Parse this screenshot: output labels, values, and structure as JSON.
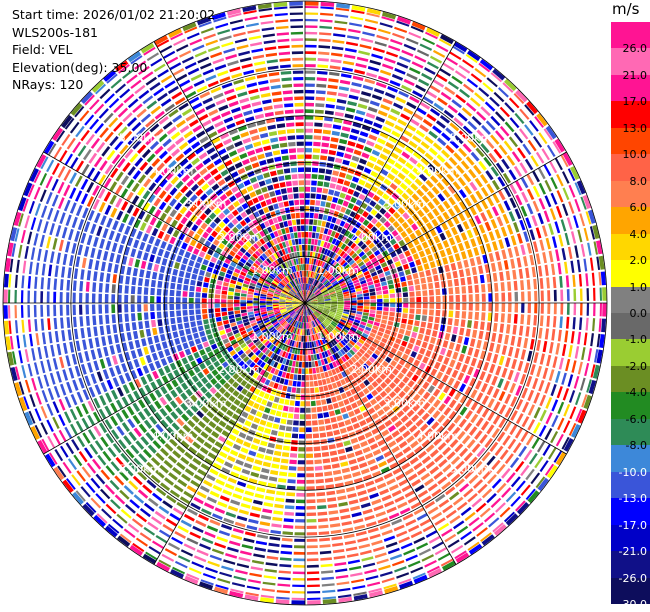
{
  "header": {
    "start_time": "Start time: 2026/01/02 21:20:02",
    "instrument": "WLS200s-181",
    "field": "Field: VEL",
    "elevation": "Elevation(deg): 35.00",
    "nrays": "NRays: 120"
  },
  "colorbar": {
    "unit": "m/s",
    "ticks": [
      "-30.0",
      "-26.0",
      "-21.0",
      "-17.0",
      "-13.0",
      "-10.0",
      "-8.0",
      "-6.0",
      "-4.0",
      "-2.0",
      "-1.0",
      "0.0",
      "1.0",
      "2.0",
      "4.0",
      "6.0",
      "8.0",
      "10.0",
      "13.0",
      "17.0",
      "21.0",
      "26.0"
    ],
    "colors": [
      "#0d0d5c",
      "#101088",
      "#0000c8",
      "#0000ff",
      "#3a55d9",
      "#3d88d9",
      "#2e8b57",
      "#228b22",
      "#6b8e23",
      "#9acd32",
      "#696969",
      "#808080",
      "#ffff00",
      "#ffd700",
      "#ffa500",
      "#ff7f50",
      "#ff6347",
      "#ff4500",
      "#ff0000",
      "#ff1493",
      "#ff69b4",
      "#ff1493"
    ]
  },
  "chart_data": {
    "type": "heatmap",
    "projection": "polar-ppi",
    "field": "VEL",
    "units": "m/s",
    "elevation_deg": 35.0,
    "n_rays": 120,
    "range_rings_km": [
      1.0,
      2.0,
      3.0,
      4.0,
      5.0
    ],
    "range_ring_labels": [
      "1.00km",
      "2.00km",
      "3.00km",
      "4.00km",
      "5.00km"
    ],
    "spokes_deg": [
      0,
      30,
      60,
      90,
      120,
      150,
      180,
      210,
      240,
      270,
      300,
      330
    ],
    "max_range_km": 6.45,
    "clim": [
      -30.0,
      30.0
    ],
    "sectors": [
      {
        "label": "west",
        "az_start": 245,
        "az_end": 295,
        "r_start_km": 2.2,
        "r_end_km": 6.0,
        "value": -11.0
      },
      {
        "label": "west-south-west green",
        "az_start": 225,
        "az_end": 260,
        "r_start_km": 2.0,
        "r_end_km": 5.8,
        "value": -6.5
      },
      {
        "label": "south-west olive",
        "az_start": 210,
        "az_end": 235,
        "r_start_km": 2.0,
        "r_end_km": 5.2,
        "value": -3.0
      },
      {
        "label": "south yellow",
        "az_start": 185,
        "az_end": 215,
        "r_start_km": 2.0,
        "r_end_km": 4.8,
        "value": 1.5
      },
      {
        "label": "south-east coral",
        "az_start": 95,
        "az_end": 180,
        "r_start_km": 1.6,
        "r_end_km": 5.6,
        "value": 8.5
      },
      {
        "label": "east coral",
        "az_start": 75,
        "az_end": 100,
        "r_start_km": 2.3,
        "r_end_km": 5.5,
        "value": 8.0
      },
      {
        "label": "north-east orange",
        "az_start": 45,
        "az_end": 78,
        "r_start_km": 2.5,
        "r_end_km": 4.8,
        "value": 5.0
      },
      {
        "label": "north-east yellow",
        "az_start": 25,
        "az_end": 50,
        "r_start_km": 2.8,
        "r_end_km": 4.5,
        "value": 2.0
      },
      {
        "label": "near-center yellow west",
        "az_start": 240,
        "az_end": 300,
        "r_start_km": 0.0,
        "r_end_km": 0.6,
        "value": 1.5
      },
      {
        "label": "near-center green east",
        "az_start": 60,
        "az_end": 140,
        "r_start_km": 0.0,
        "r_end_km": 0.9,
        "value": -2.0
      }
    ]
  }
}
